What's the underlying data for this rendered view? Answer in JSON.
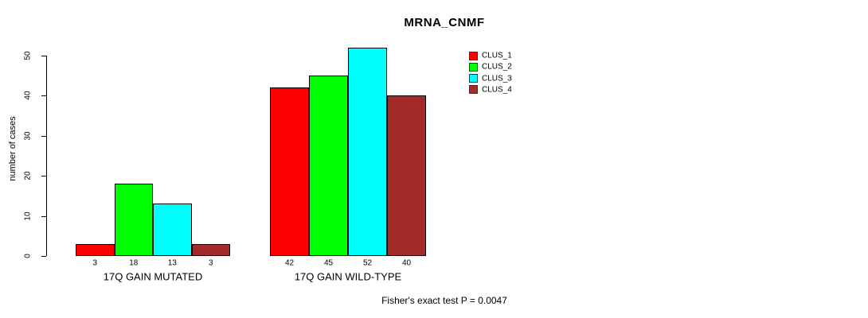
{
  "chart_data": {
    "type": "bar",
    "title": "MRNA_CNMF",
    "ylabel": "number of cases",
    "xlabel": "",
    "ylim": [
      0,
      50
    ],
    "yticks": [
      0,
      10,
      20,
      30,
      40,
      50
    ],
    "grid": false,
    "categories": [
      "17Q GAIN MUTATED",
      "17Q GAIN WILD-TYPE"
    ],
    "series": [
      {
        "name": "CLUS_1",
        "color": "#FF0000",
        "values": [
          3,
          42
        ]
      },
      {
        "name": "CLUS_2",
        "color": "#00FF00",
        "values": [
          18,
          45
        ]
      },
      {
        "name": "CLUS_3",
        "color": "#00FFFF",
        "values": [
          13,
          52
        ]
      },
      {
        "name": "CLUS_4",
        "color": "#A52A2A",
        "values": [
          3,
          40
        ]
      }
    ],
    "bar_value_labels": [
      [
        3,
        18,
        13,
        3
      ],
      [
        42,
        45,
        52,
        40
      ]
    ],
    "legend_position": "inside-top-right-of-plot",
    "annotation": "Fisher's exact test P = 0.0047",
    "colors": {
      "background": "#FFFFFF",
      "axis": "#000000",
      "text": "#000000"
    }
  }
}
